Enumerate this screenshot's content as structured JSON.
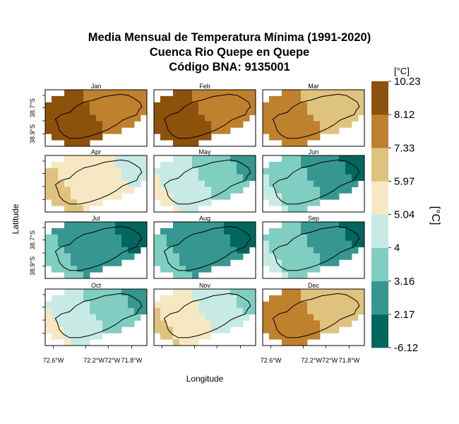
{
  "chart_data": {
    "type": "heatmap",
    "title": [
      "Media Mensual de Temperatura Mínima (1991-2020)",
      "Cuenca Rio Quepe en Quepe",
      "Código BNA: 9135001"
    ],
    "xlabel": "Longitude",
    "ylabel": "Latitude",
    "x_ticks": [
      "72.6°W",
      "72.2°W",
      "72°W",
      "71.8°W"
    ],
    "y_ticks": [
      "38.9°S",
      "38.7°S"
    ],
    "colorbar": {
      "unit_top": "[°C]",
      "unit_side": "[°C]",
      "breaks": [
        "10.23",
        "8.12",
        "7.33",
        "5.97",
        "5.04",
        "4",
        "3.16",
        "2.17",
        "-6.12"
      ],
      "colors": [
        "#01665e",
        "#35978f",
        "#80cdc1",
        "#c7eae5",
        "#f6e8c3",
        "#dfc27d",
        "#bf812d",
        "#8c510a"
      ]
    },
    "panels": [
      {
        "month": "Jan",
        "level_min": 6,
        "level_max": 7
      },
      {
        "month": "Feb",
        "level_min": 6,
        "level_max": 7
      },
      {
        "month": "Mar",
        "level_min": 5,
        "level_max": 6
      },
      {
        "month": "Apr",
        "level_min": 3,
        "level_max": 5
      },
      {
        "month": "May",
        "level_min": 1,
        "level_max": 4
      },
      {
        "month": "Jun",
        "level_min": 0,
        "level_max": 3
      },
      {
        "month": "Jul",
        "level_min": 0,
        "level_max": 2
      },
      {
        "month": "Aug",
        "level_min": 0,
        "level_max": 2
      },
      {
        "month": "Sep",
        "level_min": 0,
        "level_max": 3
      },
      {
        "month": "Oct",
        "level_min": 1,
        "level_max": 4
      },
      {
        "month": "Nov",
        "level_min": 2,
        "level_max": 5
      },
      {
        "month": "Dec",
        "level_min": 5,
        "level_max": 6
      }
    ]
  }
}
